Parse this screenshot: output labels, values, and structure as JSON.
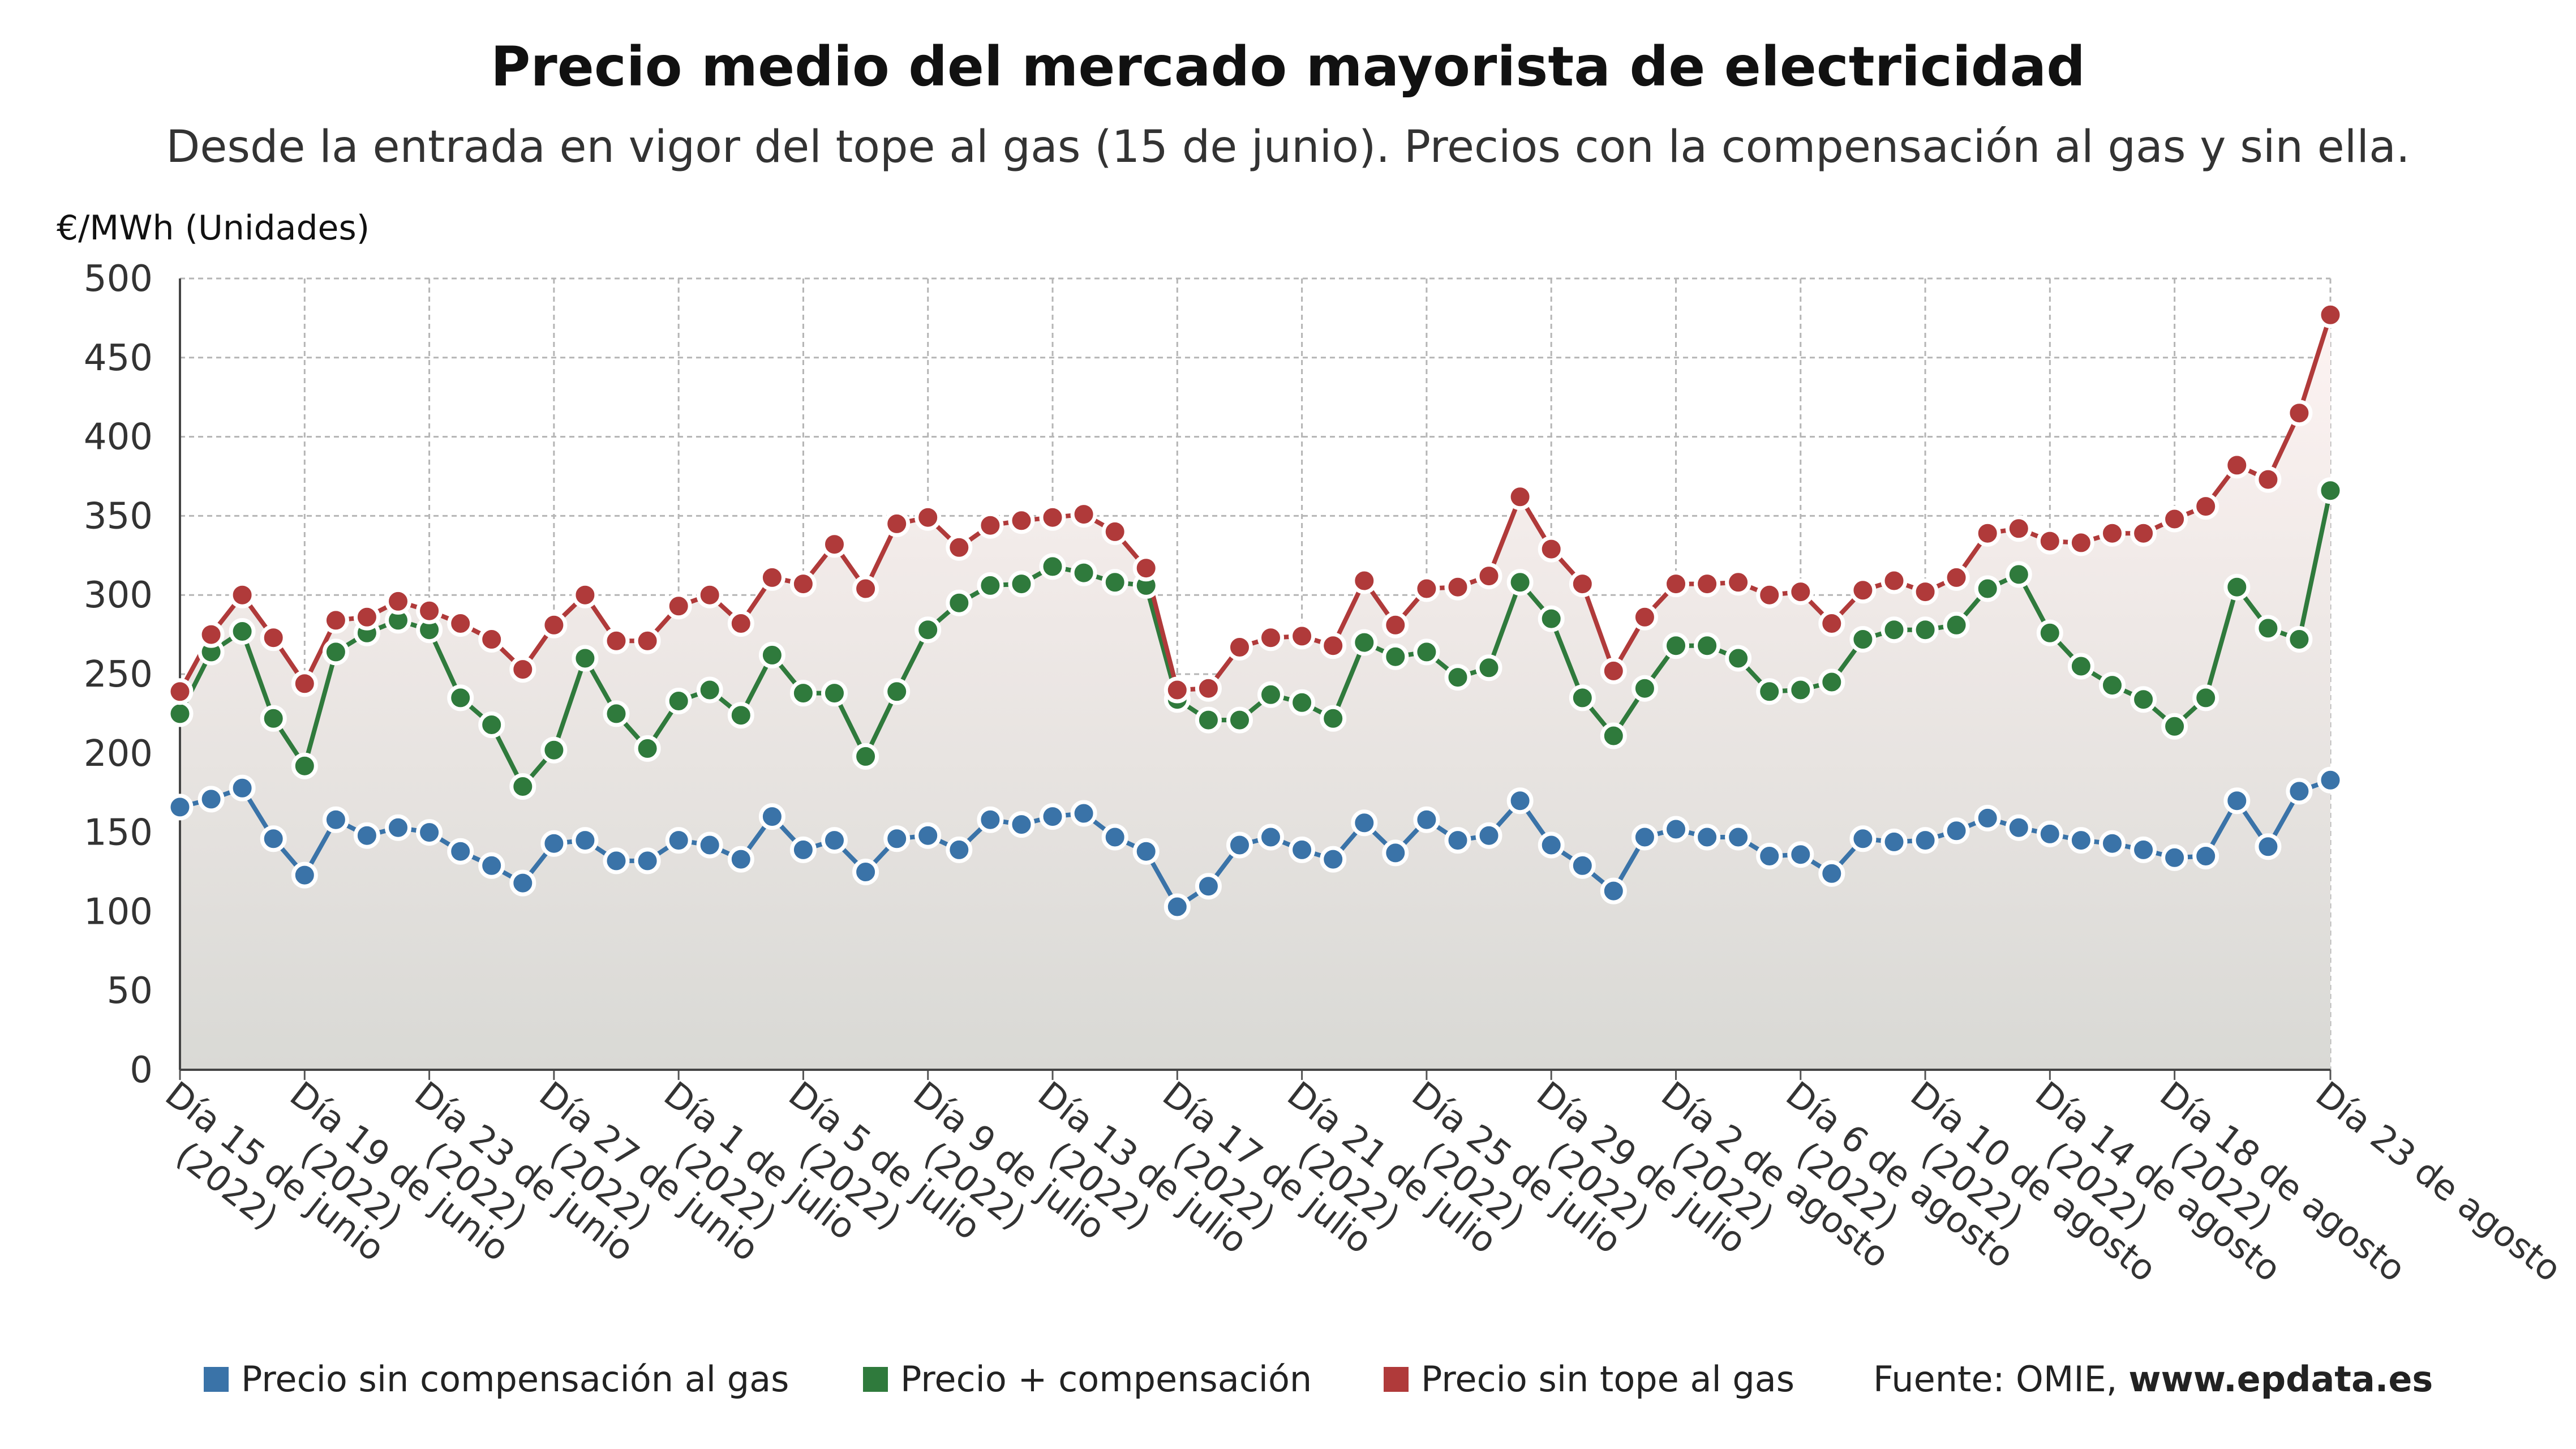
{
  "title": "Precio medio del mercado mayorista de electricidad",
  "subtitle": "Desde la entrada en vigor del tope al gas (15 de junio). Precios con la compensación al gas y sin ella.",
  "legend": [
    {
      "label": "Precio sin compensación al gas",
      "color": "#3a73a8"
    },
    {
      "label": "Precio + compensación",
      "color": "#2f7a3c"
    },
    {
      "label": "Precio sin tope al gas",
      "color": "#b03a3a"
    }
  ],
  "source": {
    "prefix": "Fuente: OMIE, ",
    "site": "www.epdata.es"
  },
  "chart_data": {
    "type": "line",
    "ylabel": "€/MWh (Unidades)",
    "ylim": [
      0,
      500
    ],
    "yticks": [
      0,
      50,
      100,
      150,
      200,
      250,
      300,
      350,
      400,
      450,
      500
    ],
    "x_start": "Día 15 de junio (2022)",
    "x_end": "Día 23 de agosto (2022)",
    "grid": true,
    "tick_labels": [
      {
        "line1": "Día 15 de junio",
        "line2": "(2022)"
      },
      {
        "line1": "Día 19 de junio",
        "line2": "(2022)"
      },
      {
        "line1": "Día 23 de junio",
        "line2": "(2022)"
      },
      {
        "line1": "Día 27 de junio",
        "line2": "(2022)"
      },
      {
        "line1": "Día 1 de julio",
        "line2": "(2022)"
      },
      {
        "line1": "Día 5 de julio",
        "line2": "(2022)"
      },
      {
        "line1": "Día 9 de julio",
        "line2": "(2022)"
      },
      {
        "line1": "Día 13 de julio",
        "line2": "(2022)"
      },
      {
        "line1": "Día 17 de julio",
        "line2": "(2022)"
      },
      {
        "line1": "Día 21 de julio",
        "line2": "(2022)"
      },
      {
        "line1": "Día 25 de julio",
        "line2": "(2022)"
      },
      {
        "line1": "Día 29 de julio",
        "line2": "(2022)"
      },
      {
        "line1": "Día 2 de agosto",
        "line2": "(2022)"
      },
      {
        "line1": "Día 6 de agosto",
        "line2": "(2022)"
      },
      {
        "line1": "Día 10 de agosto",
        "line2": "(2022)"
      },
      {
        "line1": "Día 14 de agosto",
        "line2": "(2022)"
      },
      {
        "line1": "Día 18 de agosto",
        "line2": "(2022)"
      },
      {
        "line1": "Día 23 de agosto",
        "line2": ""
      }
    ],
    "series": [
      {
        "name": "Precio sin compensación al gas",
        "color": "#3a73a8",
        "values": [
          166,
          171,
          178,
          146,
          123,
          158,
          148,
          153,
          150,
          138,
          129,
          118,
          143,
          145,
          132,
          132,
          145,
          142,
          133,
          160,
          139,
          145,
          125,
          146,
          148,
          139,
          158,
          155,
          160,
          162,
          147,
          138,
          103,
          116,
          142,
          147,
          139,
          133,
          156,
          137,
          158,
          145,
          148,
          170,
          142,
          129,
          113,
          147,
          152,
          147,
          147,
          135,
          136,
          124,
          146,
          144,
          145,
          151,
          159,
          153,
          149,
          145,
          143,
          139,
          134,
          135,
          170,
          141,
          176,
          183
        ]
      },
      {
        "name": "Precio + compensación",
        "color": "#2f7a3c",
        "values": [
          225,
          264,
          277,
          222,
          192,
          264,
          276,
          284,
          278,
          235,
          218,
          179,
          202,
          260,
          225,
          203,
          233,
          240,
          224,
          262,
          238,
          238,
          198,
          239,
          278,
          295,
          306,
          307,
          318,
          314,
          308,
          306,
          234,
          221,
          221,
          237,
          232,
          222,
          270,
          261,
          264,
          248,
          254,
          308,
          285,
          235,
          211,
          241,
          268,
          268,
          260,
          239,
          240,
          245,
          272,
          278,
          278,
          281,
          304,
          313,
          276,
          255,
          243,
          234,
          217,
          235,
          305,
          279,
          272,
          366
        ]
      },
      {
        "name": "Precio sin tope al gas",
        "color": "#b03a3a",
        "values": [
          239,
          275,
          300,
          273,
          244,
          284,
          286,
          296,
          290,
          282,
          272,
          253,
          281,
          300,
          271,
          271,
          293,
          300,
          282,
          311,
          307,
          332,
          304,
          345,
          349,
          330,
          344,
          347,
          349,
          351,
          340,
          317,
          240,
          241,
          267,
          273,
          274,
          268,
          309,
          281,
          304,
          305,
          312,
          362,
          329,
          307,
          252,
          286,
          307,
          307,
          308,
          300,
          302,
          282,
          303,
          309,
          302,
          311,
          339,
          342,
          334,
          333,
          339,
          339,
          348,
          356,
          382,
          373,
          415,
          477
        ]
      }
    ]
  }
}
